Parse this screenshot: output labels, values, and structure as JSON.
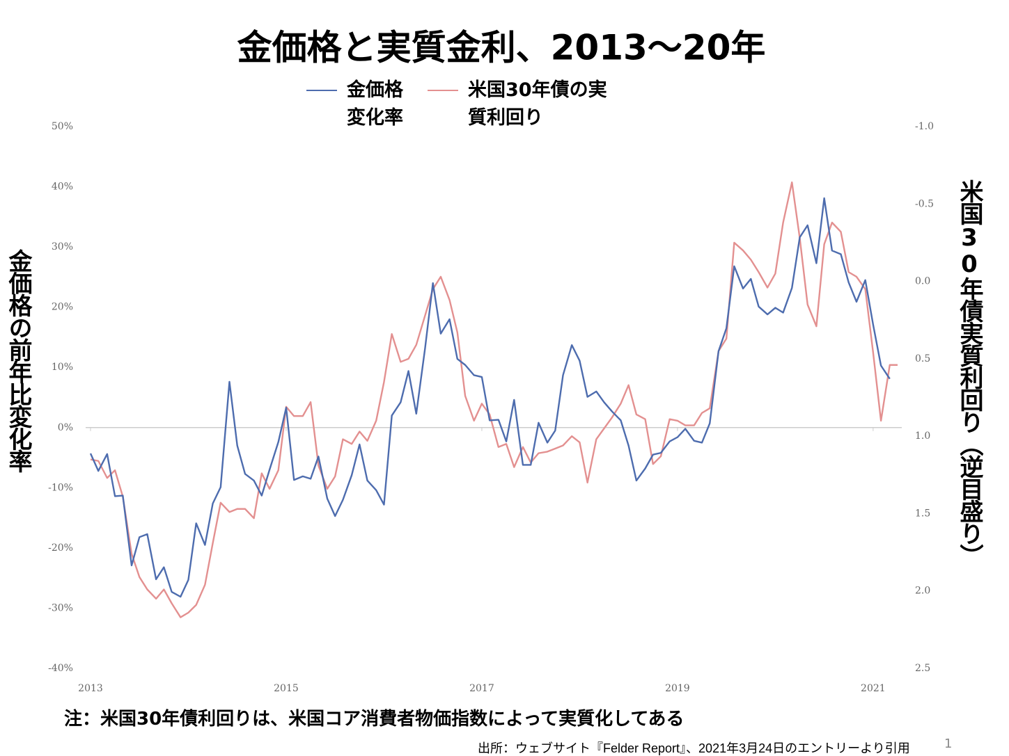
{
  "chart_data": {
    "type": "line",
    "title": "金価格と実質金利、2013～20年",
    "y_label": "金価格の前年比変化率",
    "y2_label": "米国30年債実質利回り（逆目盛り）",
    "x": [
      2013,
      2013.08,
      2013.17,
      2013.25,
      2013.33,
      2013.42,
      2013.5,
      2013.58,
      2013.67,
      2013.75,
      2013.83,
      2013.92,
      2014,
      2014.08,
      2014.17,
      2014.25,
      2014.33,
      2014.42,
      2014.5,
      2014.58,
      2014.67,
      2014.75,
      2014.83,
      2014.92,
      2015,
      2015.08,
      2015.17,
      2015.25,
      2015.33,
      2015.42,
      2015.5,
      2015.58,
      2015.67,
      2015.75,
      2015.83,
      2015.92,
      2016,
      2016.08,
      2016.17,
      2016.25,
      2016.33,
      2016.42,
      2016.5,
      2016.58,
      2016.67,
      2016.75,
      2016.83,
      2016.92,
      2017,
      2017.08,
      2017.17,
      2017.25,
      2017.33,
      2017.42,
      2017.5,
      2017.58,
      2017.67,
      2017.75,
      2017.83,
      2017.92,
      2018,
      2018.08,
      2018.17,
      2018.25,
      2018.33,
      2018.42,
      2018.5,
      2018.58,
      2018.67,
      2018.75,
      2018.83,
      2018.92,
      2019,
      2019.08,
      2019.17,
      2019.25,
      2019.33,
      2019.42,
      2019.5,
      2019.58,
      2019.67,
      2019.75,
      2019.83,
      2019.92,
      2020,
      2020.08,
      2020.17,
      2020.25,
      2020.33,
      2020.42,
      2020.5,
      2020.58,
      2020.67,
      2020.75,
      2020.83,
      2020.92,
      2021,
      2021.08,
      2021.17,
      2021.25
    ],
    "series": [
      {
        "name": "金価格変化率",
        "color": "#4d6cae",
        "axis": "y",
        "values": [
          -4.3,
          -7.2,
          -4.4,
          -11.4,
          -11.3,
          -22.9,
          -18.2,
          -17.7,
          -25.2,
          -23.2,
          -27.3,
          -28.1,
          -25.3,
          -15.9,
          -19.5,
          -12.6,
          -9.9,
          7.6,
          -3,
          -7.7,
          -8.8,
          -11.3,
          -7,
          -2.4,
          3.3,
          -8.7,
          -8.1,
          -8.5,
          -4.8,
          -11.8,
          -14.7,
          -12,
          -7.9,
          -2.8,
          -8.8,
          -10.4,
          -12.8,
          2,
          4.2,
          9.4,
          2.3,
          13.2,
          24,
          15.6,
          18,
          11.4,
          10.4,
          8.7,
          8.4,
          1.2,
          1.3,
          -2.3,
          4.6,
          -6.2,
          -6.2,
          0.8,
          -2.5,
          -0.5,
          8.7,
          13.7,
          11.1,
          5.1,
          6,
          4.2,
          2.7,
          1.2,
          -3,
          -8.8,
          -6.8,
          -4.5,
          -4.2,
          -2.3,
          -1.6,
          -0.2,
          -2.2,
          -2.5,
          0.7,
          12.7,
          16.5,
          26.8,
          23.1,
          24.7,
          20.1,
          18.8,
          19.9,
          19.1,
          23.2,
          31.6,
          33.6,
          27.3,
          38.1,
          29.4,
          28.8,
          24.1,
          20.9,
          24.5,
          17.1,
          10.3,
          8.1,
          null
        ]
      },
      {
        "name": "米国30年債の実質利回り",
        "color": "#e39090",
        "axis": "y2",
        "values": [
          1.15,
          1.16,
          1.27,
          1.22,
          1.39,
          1.76,
          1.91,
          1.99,
          2.05,
          1.99,
          2.08,
          2.17,
          2.14,
          2.09,
          1.96,
          1.69,
          1.43,
          1.49,
          1.47,
          1.47,
          1.53,
          1.24,
          1.34,
          1.22,
          0.81,
          0.87,
          0.87,
          0.78,
          1.19,
          1.34,
          1.26,
          1.02,
          1.05,
          0.97,
          1.03,
          0.9,
          0.65,
          0.34,
          0.52,
          0.5,
          0.41,
          0.22,
          0.05,
          -0.03,
          0.12,
          0.33,
          0.74,
          0.9,
          0.79,
          0.86,
          1.07,
          1.05,
          1.2,
          1.07,
          1.17,
          1.11,
          1.1,
          1.08,
          1.06,
          1,
          1.04,
          1.3,
          1.02,
          0.95,
          0.88,
          0.79,
          0.67,
          0.86,
          0.89,
          1.18,
          1.13,
          0.89,
          0.9,
          0.93,
          0.93,
          0.85,
          0.82,
          0.45,
          0.37,
          -0.25,
          -0.2,
          -0.14,
          -0.06,
          0.04,
          -0.05,
          -0.38,
          -0.64,
          -0.28,
          0.15,
          0.29,
          -0.24,
          -0.38,
          -0.32,
          -0.06,
          -0.03,
          0.05,
          0.46,
          0.9,
          0.54,
          0.54
        ]
      }
    ],
    "xlim": [
      2013,
      2021.25
    ],
    "xticks": [
      2013,
      2015,
      2017,
      2019,
      2021
    ],
    "ylim": [
      -40,
      50
    ],
    "yticks": [
      {
        "value": -40,
        "label": "-40%"
      },
      {
        "value": -30,
        "label": "-30%"
      },
      {
        "value": -20,
        "label": "-20%"
      },
      {
        "value": -10,
        "label": "-10%"
      },
      {
        "value": 0,
        "label": "0%"
      },
      {
        "value": 10,
        "label": "10%"
      },
      {
        "value": 20,
        "label": "20%"
      },
      {
        "value": 30,
        "label": "30%"
      },
      {
        "value": 40,
        "label": "40%"
      },
      {
        "value": 50,
        "label": "50%"
      }
    ],
    "y2lim": [
      -1.0,
      2.5
    ],
    "y2_inverted": true,
    "y2ticks": [
      {
        "value": -1.0,
        "label": "-1.0"
      },
      -0.5,
      {
        "value": 0,
        "label": "0.0"
      },
      0.5,
      {
        "value": 1.0,
        "label": "1.0"
      },
      1.5,
      {
        "value": 2.0,
        "label": "2.0"
      },
      2.5
    ],
    "zero_line": true,
    "legend": "top"
  },
  "note": "注：米国30年債利回りは、米国コア消費者物価指数によって実質化してある",
  "source": "出所：ウェブサイト『Felder Report』、2021年3月24日のエントリーより引用",
  "page_number": "1"
}
